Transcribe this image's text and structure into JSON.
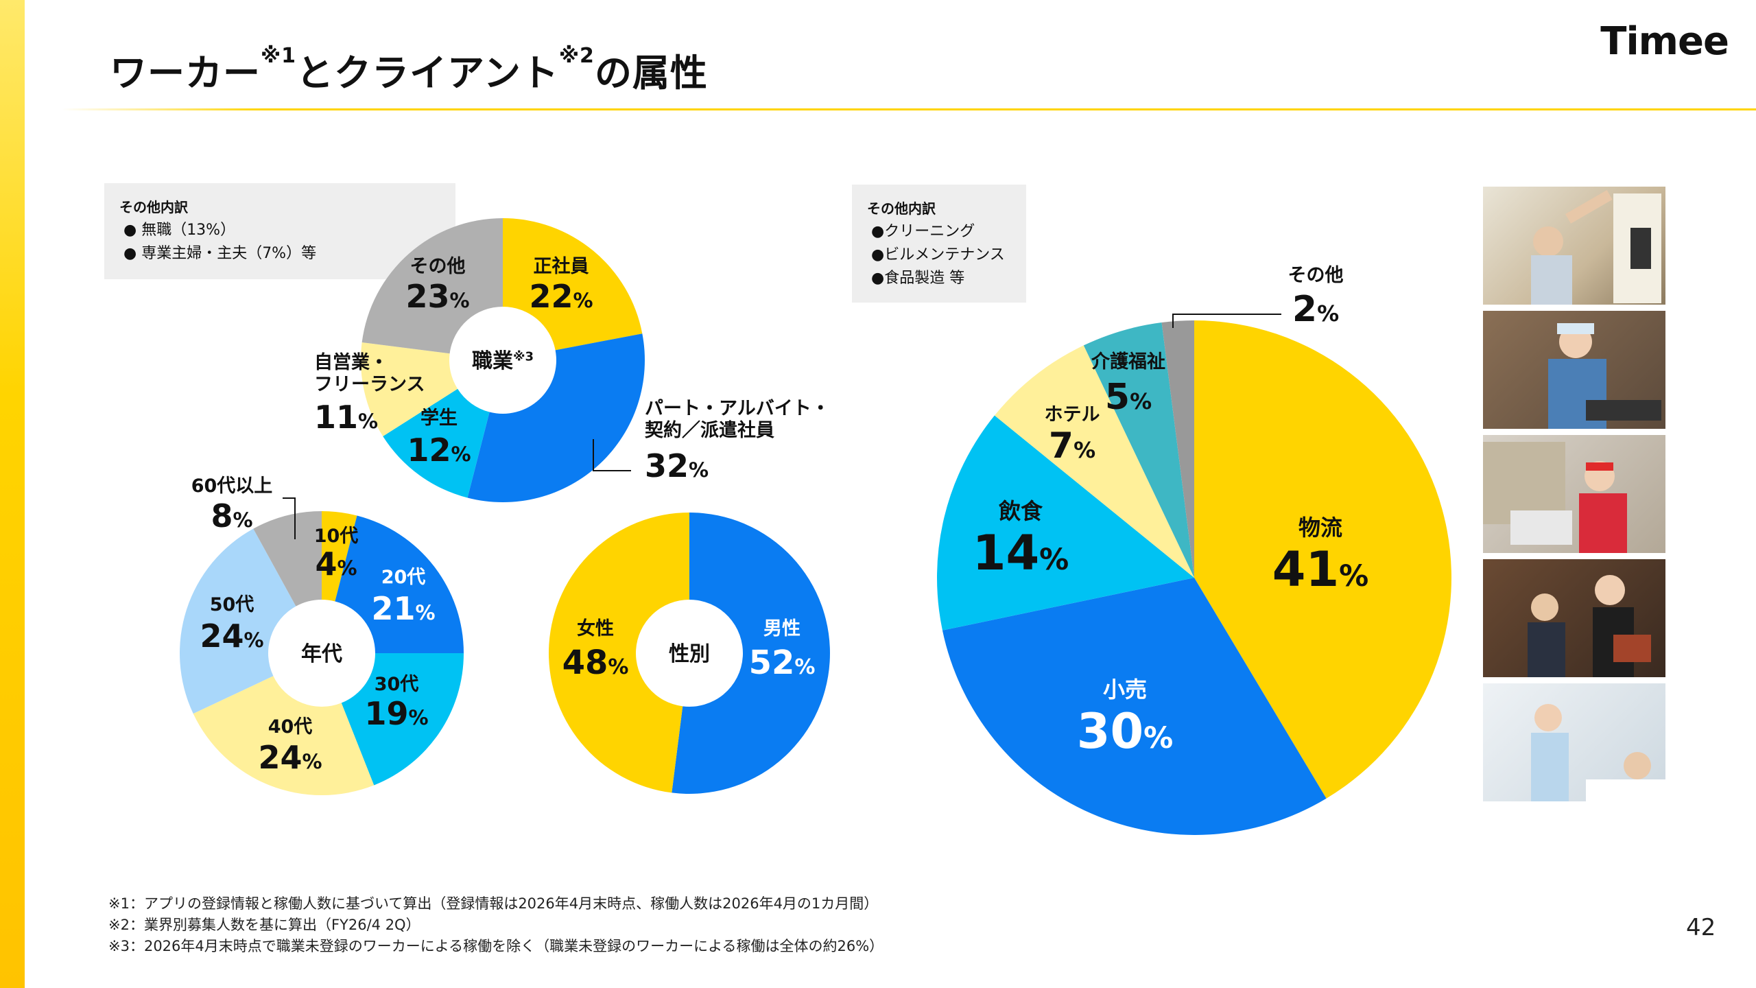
{
  "header": {
    "title_part1": "ワーカー",
    "title_sup1": "※1",
    "title_part2": "とクライアント",
    "title_sup2": "※2",
    "title_part3": "の属性",
    "logo": "Timee",
    "accent": "#ffd400"
  },
  "notes": {
    "worker_other": {
      "heading": "その他内訳",
      "items": [
        "● 無職（13%）",
        "● 専業主婦・主夫（7%）等"
      ]
    },
    "client_other": {
      "heading": "その他内訳",
      "items": [
        "●クリーニング",
        "●ビルメンテナンス",
        "●食品製造 等"
      ]
    }
  },
  "footnotes": [
    "※1：アプリの登録情報と稼働人数に基づいて算出（登録情報は2026年4月末時点、稼働人数は2026年4月の1カ月間）",
    "※2：業界別募集人数を基に算出（FY26/4 2Q）",
    "※3：2026年4月末時点で職業未登録のワーカーによる稼働を除く（職業未登録のワーカーによる稼働は全体の約26%）"
  ],
  "page_number": "42",
  "photos": [
    "warehouse-worker",
    "food-service-worker",
    "retail-cashier",
    "hotel-staff",
    "care-worker"
  ],
  "chart_data": [
    {
      "type": "pie",
      "variant": "donut",
      "center_label": "職業",
      "center_sup": "※3",
      "categories": [
        "正社員",
        "パート・アルバイト・契約／派遣社員",
        "学生",
        "自営業・フリーランス",
        "その他"
      ],
      "label_lines": [
        [
          "正社員"
        ],
        [
          "パート・アルバイト・",
          "契約／派遣社員"
        ],
        [
          "学生"
        ],
        [
          "自営業・",
          "フリーランス"
        ],
        [
          "その他"
        ]
      ],
      "values": [
        22,
        32,
        12,
        11,
        23
      ],
      "colors": [
        "#ffd400",
        "#0a7cf2",
        "#00c2f3",
        "#fff09a",
        "#b0b0b0"
      ],
      "unit": "%"
    },
    {
      "type": "pie",
      "variant": "donut",
      "center_label": "年代",
      "categories": [
        "10代",
        "20代",
        "30代",
        "40代",
        "50代",
        "60代以上"
      ],
      "values": [
        4,
        21,
        19,
        24,
        24,
        8
      ],
      "colors": [
        "#ffd400",
        "#0a7cf2",
        "#00c2f3",
        "#fff09a",
        "#a9d7fa",
        "#b0b0b0"
      ],
      "unit": "%"
    },
    {
      "type": "pie",
      "variant": "donut",
      "center_label": "性別",
      "categories": [
        "男性",
        "女性"
      ],
      "values": [
        52,
        48
      ],
      "colors": [
        "#0a7cf2",
        "#ffd400"
      ],
      "unit": "%"
    },
    {
      "type": "pie",
      "categories": [
        "物流",
        "小売",
        "飲食",
        "ホテル",
        "介護福祉",
        "その他"
      ],
      "values": [
        41,
        30,
        14,
        7,
        5,
        2
      ],
      "colors": [
        "#ffd400",
        "#0a7cf2",
        "#00c2f3",
        "#fff09a",
        "#3eb7c4",
        "#999999"
      ],
      "unit": "%"
    }
  ]
}
